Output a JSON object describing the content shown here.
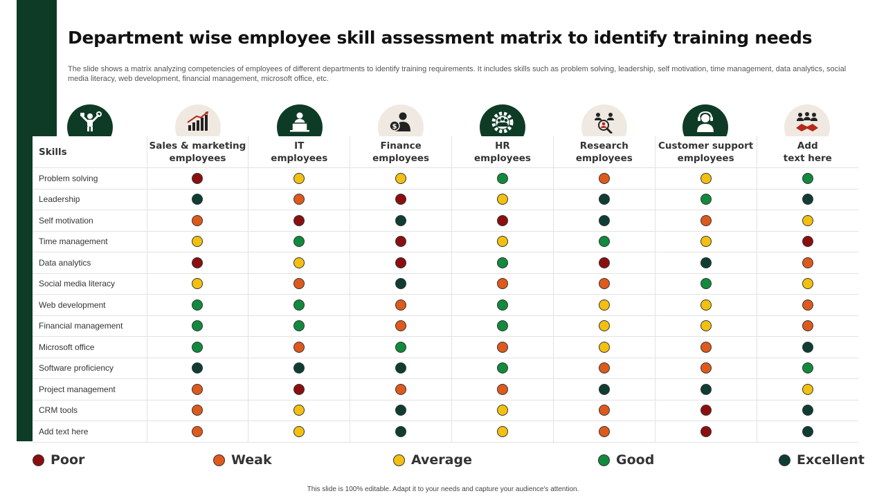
{
  "title": "Department wise employee skill assessment matrix to identify training needs",
  "description": "The slide shows a matrix analyzing competencies of employees of different departments to identify training requirements. It includes skills such as problem solving, leadership, self motivation, time management, data analytics, social media literacy, web development, financial management, microsoft office, etc.",
  "skills_header": "Skills",
  "departments": [
    {
      "line1": "Sales & marketing",
      "line2": "employees",
      "icon": "trophy-person-icon"
    },
    {
      "line1": "IT",
      "line2": "employees",
      "icon": "laptop-user-icon"
    },
    {
      "line1": "Finance",
      "line2": "employees",
      "icon": "money-user-icon"
    },
    {
      "line1": "HR",
      "line2": "employees",
      "icon": "gear-team-icon"
    },
    {
      "line1": "Research",
      "line2": "employees",
      "icon": "team-search-icon"
    },
    {
      "line1": "Customer support",
      "line2": "employees",
      "icon": "headset-agent-icon"
    },
    {
      "line1": "Add",
      "line2": "text here",
      "icon": "handshake-team-icon"
    }
  ],
  "rows": [
    {
      "skill": "Problem solving",
      "ratings": [
        "poor",
        "average",
        "average",
        "good",
        "weak",
        "average",
        "good"
      ]
    },
    {
      "skill": "Leadership",
      "ratings": [
        "excellent",
        "weak",
        "poor",
        "average",
        "excellent",
        "good",
        "excellent"
      ]
    },
    {
      "skill": "Self motivation",
      "ratings": [
        "weak",
        "poor",
        "excellent",
        "poor",
        "excellent",
        "weak",
        "average"
      ]
    },
    {
      "skill": "Time management",
      "ratings": [
        "average",
        "good",
        "poor",
        "average",
        "good",
        "average",
        "poor"
      ]
    },
    {
      "skill": "Data analytics",
      "ratings": [
        "poor",
        "average",
        "poor",
        "good",
        "poor",
        "excellent",
        "weak"
      ]
    },
    {
      "skill": "Social media literacy",
      "ratings": [
        "average",
        "weak",
        "excellent",
        "weak",
        "weak",
        "good",
        "average"
      ]
    },
    {
      "skill": "Web development",
      "ratings": [
        "good",
        "good",
        "weak",
        "good",
        "average",
        "average",
        "weak"
      ]
    },
    {
      "skill": "Financial management",
      "ratings": [
        "good",
        "good",
        "weak",
        "good",
        "average",
        "average",
        "weak"
      ]
    },
    {
      "skill": "Microsoft office",
      "ratings": [
        "good",
        "weak",
        "good",
        "weak",
        "average",
        "weak",
        "excellent"
      ]
    },
    {
      "skill": "Software proficiency",
      "ratings": [
        "excellent",
        "excellent",
        "excellent",
        "good",
        "weak",
        "weak",
        "good"
      ]
    },
    {
      "skill": "Project management",
      "ratings": [
        "weak",
        "poor",
        "weak",
        "weak",
        "excellent",
        "excellent",
        "average"
      ]
    },
    {
      "skill": "CRM tools",
      "ratings": [
        "weak",
        "average",
        "excellent",
        "average",
        "weak",
        "poor",
        "excellent"
      ]
    },
    {
      "skill": "Add text here",
      "ratings": [
        "weak",
        "average",
        "excellent",
        "average",
        "weak",
        "poor",
        "excellent"
      ]
    }
  ],
  "legend": [
    {
      "key": "poor",
      "label": "Poor",
      "color": "#8b0f0f"
    },
    {
      "key": "weak",
      "label": "Weak",
      "color": "#dd5a1c"
    },
    {
      "key": "average",
      "label": "Average",
      "color": "#f2c011"
    },
    {
      "key": "good",
      "label": "Good",
      "color": "#118a3e"
    },
    {
      "key": "excellent",
      "label": "Excellent",
      "color": "#0f3d34"
    }
  ],
  "colors": {
    "brand_dark": "#0e3b26",
    "icon_light_bg": "#f0e9e2"
  },
  "footer": "This slide is 100% editable. Adapt it to your needs and capture your audience's attention."
}
